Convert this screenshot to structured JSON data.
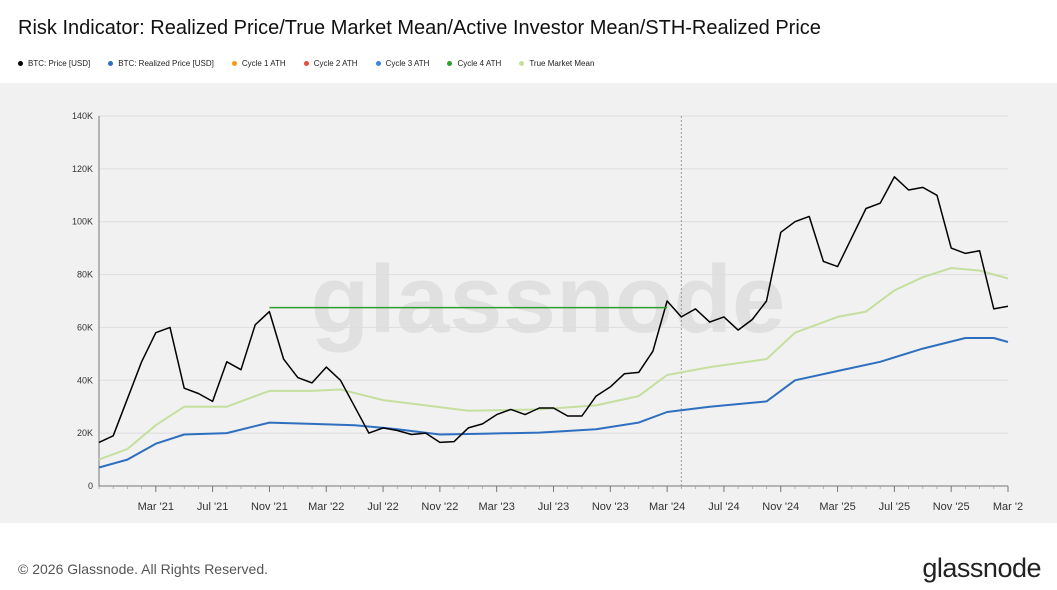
{
  "header": {
    "title": "Risk Indicator: Realized Price/True Market Mean/Active Investor Mean/STH-Realized Price"
  },
  "legend": [
    {
      "label": "BTC: Price [USD]",
      "color": "#000000"
    },
    {
      "label": "BTC: Realized Price [USD]",
      "color": "#2f6fbf"
    },
    {
      "label": "Cycle 1 ATH",
      "color": "#f39c12"
    },
    {
      "label": "Cycle 2 ATH",
      "color": "#e74c3c"
    },
    {
      "label": "Cycle 3 ATH",
      "color": "#3a86d4"
    },
    {
      "label": "Cycle 4 ATH",
      "color": "#2ca02c"
    },
    {
      "label": "True Market Mean",
      "color": "#c5df9f"
    }
  ],
  "watermark": "glassnode",
  "footer": {
    "copyright": "© 2026 Glassnode. All Rights Reserved.",
    "logo": "glassnode"
  },
  "chart_data": {
    "type": "line",
    "x_unit": "month",
    "x_start": "2020-11",
    "x_end": "2026-03",
    "ylim": [
      0,
      140000
    ],
    "yticks": [
      0,
      20000,
      40000,
      60000,
      80000,
      100000,
      120000,
      140000
    ],
    "ytick_labels": [
      "0",
      "20K",
      "40K",
      "60K",
      "80K",
      "100K",
      "120K",
      "140K"
    ],
    "xticks": [
      {
        "date": "2021-03",
        "label": "Mar '21"
      },
      {
        "date": "2021-07",
        "label": "Jul '21"
      },
      {
        "date": "2021-11",
        "label": "Nov '21"
      },
      {
        "date": "2022-03",
        "label": "Mar '22"
      },
      {
        "date": "2022-07",
        "label": "Jul '22"
      },
      {
        "date": "2022-11",
        "label": "Nov '22"
      },
      {
        "date": "2023-03",
        "label": "Mar '23"
      },
      {
        "date": "2023-07",
        "label": "Jul '23"
      },
      {
        "date": "2023-11",
        "label": "Nov '23"
      },
      {
        "date": "2024-03",
        "label": "Mar '24"
      },
      {
        "date": "2024-07",
        "label": "Jul '24"
      },
      {
        "date": "2024-11",
        "label": "Nov '24"
      },
      {
        "date": "2025-03",
        "label": "Mar '25"
      },
      {
        "date": "2025-07",
        "label": "Jul '25"
      },
      {
        "date": "2025-11",
        "label": "Nov '25"
      },
      {
        "date": "2026-03",
        "label": "Mar '2"
      }
    ],
    "vertical_marker": {
      "date": "2024-04"
    },
    "ath_line": {
      "name": "Cycle 4 ATH",
      "value": 67500,
      "from": "2021-11",
      "to": "2024-03",
      "color": "#2ca02c"
    },
    "series": [
      {
        "name": "BTC: Price [USD]",
        "color": "#000000",
        "points": [
          [
            "2020-11",
            16500
          ],
          [
            "2020-12",
            19000
          ],
          [
            "2021-01",
            33000
          ],
          [
            "2021-02",
            47000
          ],
          [
            "2021-03",
            58000
          ],
          [
            "2021-04",
            60000
          ],
          [
            "2021-05",
            37000
          ],
          [
            "2021-06",
            35000
          ],
          [
            "2021-07",
            32000
          ],
          [
            "2021-08",
            47000
          ],
          [
            "2021-09",
            44000
          ],
          [
            "2021-10",
            61000
          ],
          [
            "2021-11",
            66000
          ],
          [
            "2021-12",
            48000
          ],
          [
            "2022-01",
            41000
          ],
          [
            "2022-02",
            39000
          ],
          [
            "2022-03",
            45000
          ],
          [
            "2022-04",
            40000
          ],
          [
            "2022-05",
            30000
          ],
          [
            "2022-06",
            20000
          ],
          [
            "2022-07",
            22000
          ],
          [
            "2022-08",
            21000
          ],
          [
            "2022-09",
            19500
          ],
          [
            "2022-10",
            20000
          ],
          [
            "2022-11",
            16500
          ],
          [
            "2022-12",
            16800
          ],
          [
            "2023-01",
            22000
          ],
          [
            "2023-02",
            23500
          ],
          [
            "2023-03",
            27000
          ],
          [
            "2023-04",
            29000
          ],
          [
            "2023-05",
            27000
          ],
          [
            "2023-06",
            29500
          ],
          [
            "2023-07",
            29500
          ],
          [
            "2023-08",
            26500
          ],
          [
            "2023-09",
            26500
          ],
          [
            "2023-10",
            34000
          ],
          [
            "2023-11",
            37500
          ],
          [
            "2023-12",
            42500
          ],
          [
            "2024-01",
            43000
          ],
          [
            "2024-02",
            51000
          ],
          [
            "2024-03",
            70000
          ],
          [
            "2024-04",
            64000
          ],
          [
            "2024-05",
            67000
          ],
          [
            "2024-06",
            62000
          ],
          [
            "2024-07",
            64000
          ],
          [
            "2024-08",
            59000
          ],
          [
            "2024-09",
            63000
          ],
          [
            "2024-10",
            70000
          ],
          [
            "2024-11",
            96000
          ],
          [
            "2024-12",
            100000
          ],
          [
            "2025-01",
            102000
          ],
          [
            "2025-02",
            85000
          ],
          [
            "2025-03",
            83000
          ],
          [
            "2025-04",
            94000
          ],
          [
            "2025-05",
            105000
          ],
          [
            "2025-06",
            107000
          ],
          [
            "2025-07",
            117000
          ],
          [
            "2025-08",
            112000
          ],
          [
            "2025-09",
            113000
          ],
          [
            "2025-10",
            110000
          ],
          [
            "2025-11",
            90000
          ],
          [
            "2025-12",
            88000
          ],
          [
            "2026-01",
            89000
          ],
          [
            "2026-02",
            67000
          ],
          [
            "2026-03",
            68000
          ]
        ]
      },
      {
        "name": "BTC: Realized Price [USD]",
        "color": "#2f6fbf",
        "points": [
          [
            "2020-11",
            7000
          ],
          [
            "2021-01",
            10000
          ],
          [
            "2021-03",
            16000
          ],
          [
            "2021-05",
            19500
          ],
          [
            "2021-08",
            20000
          ],
          [
            "2021-11",
            24000
          ],
          [
            "2022-02",
            23500
          ],
          [
            "2022-05",
            23000
          ],
          [
            "2022-08",
            21500
          ],
          [
            "2022-11",
            19500
          ],
          [
            "2023-02",
            19800
          ],
          [
            "2023-06",
            20200
          ],
          [
            "2023-10",
            21500
          ],
          [
            "2024-01",
            24000
          ],
          [
            "2024-03",
            28000
          ],
          [
            "2024-06",
            30000
          ],
          [
            "2024-10",
            32000
          ],
          [
            "2024-12",
            40000
          ],
          [
            "2025-03",
            43500
          ],
          [
            "2025-06",
            47000
          ],
          [
            "2025-09",
            52000
          ],
          [
            "2025-12",
            56000
          ],
          [
            "2026-02",
            56000
          ],
          [
            "2026-03",
            54500
          ]
        ]
      },
      {
        "name": "True Market Mean",
        "color": "#c5df9f",
        "points": [
          [
            "2020-11",
            10000
          ],
          [
            "2021-01",
            14000
          ],
          [
            "2021-03",
            23000
          ],
          [
            "2021-05",
            30000
          ],
          [
            "2021-08",
            30000
          ],
          [
            "2021-11",
            36000
          ],
          [
            "2022-02",
            36000
          ],
          [
            "2022-04",
            36500
          ],
          [
            "2022-07",
            32500
          ],
          [
            "2022-10",
            30500
          ],
          [
            "2023-01",
            28500
          ],
          [
            "2023-06",
            29000
          ],
          [
            "2023-10",
            30500
          ],
          [
            "2024-01",
            34000
          ],
          [
            "2024-03",
            42000
          ],
          [
            "2024-06",
            45000
          ],
          [
            "2024-10",
            48000
          ],
          [
            "2024-12",
            58000
          ],
          [
            "2025-03",
            64000
          ],
          [
            "2025-05",
            66000
          ],
          [
            "2025-07",
            74000
          ],
          [
            "2025-09",
            79000
          ],
          [
            "2025-11",
            82500
          ],
          [
            "2026-01",
            81500
          ],
          [
            "2026-03",
            78500
          ]
        ]
      }
    ]
  }
}
